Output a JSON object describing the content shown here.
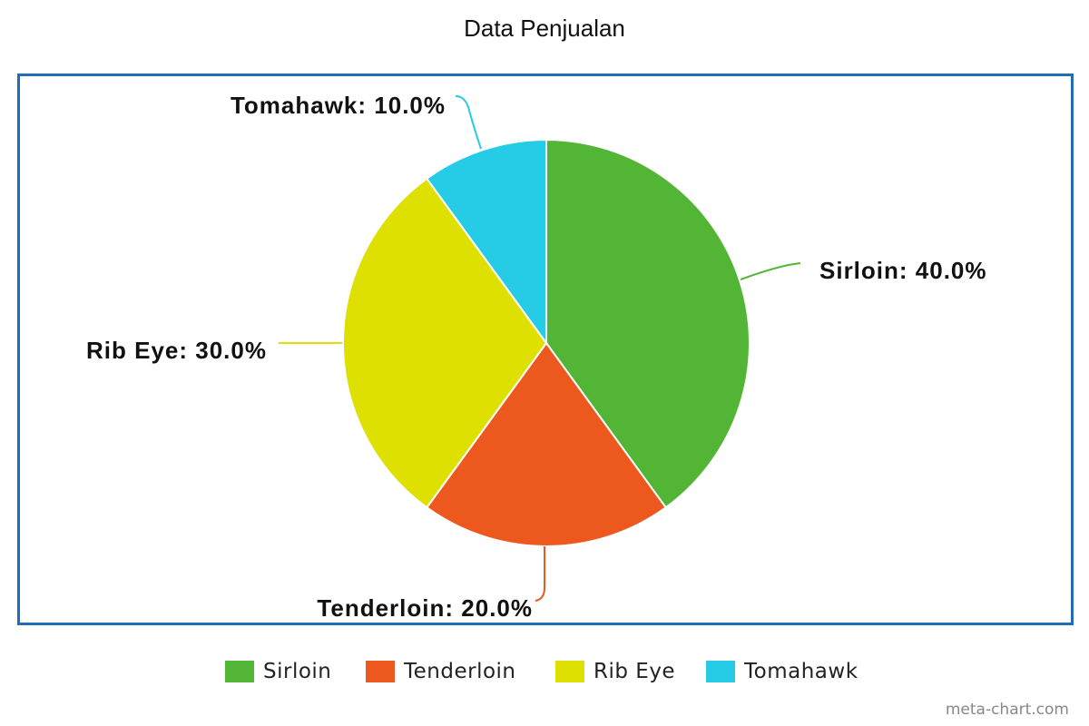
{
  "chart_data": {
    "type": "pie",
    "title": "Data Penjualan",
    "slices": [
      {
        "label": "Sirloin",
        "value": 40.0,
        "color": "#53b535",
        "data_label": "Sirloin: 40.0%"
      },
      {
        "label": "Tenderloin",
        "value": 20.0,
        "color": "#ec581e",
        "data_label": "Tenderloin: 20.0%"
      },
      {
        "label": "Rib Eye",
        "value": 30.0,
        "color": "#dde000",
        "data_label": "Rib Eye: 30.0%"
      },
      {
        "label": "Tomahawk",
        "value": 10.0,
        "color": "#26cbe5",
        "data_label": "Tomahawk: 10.0%"
      }
    ],
    "legend_position": "bottom"
  },
  "frame_color": "#1f6eb5",
  "watermark": "meta-chart.com"
}
